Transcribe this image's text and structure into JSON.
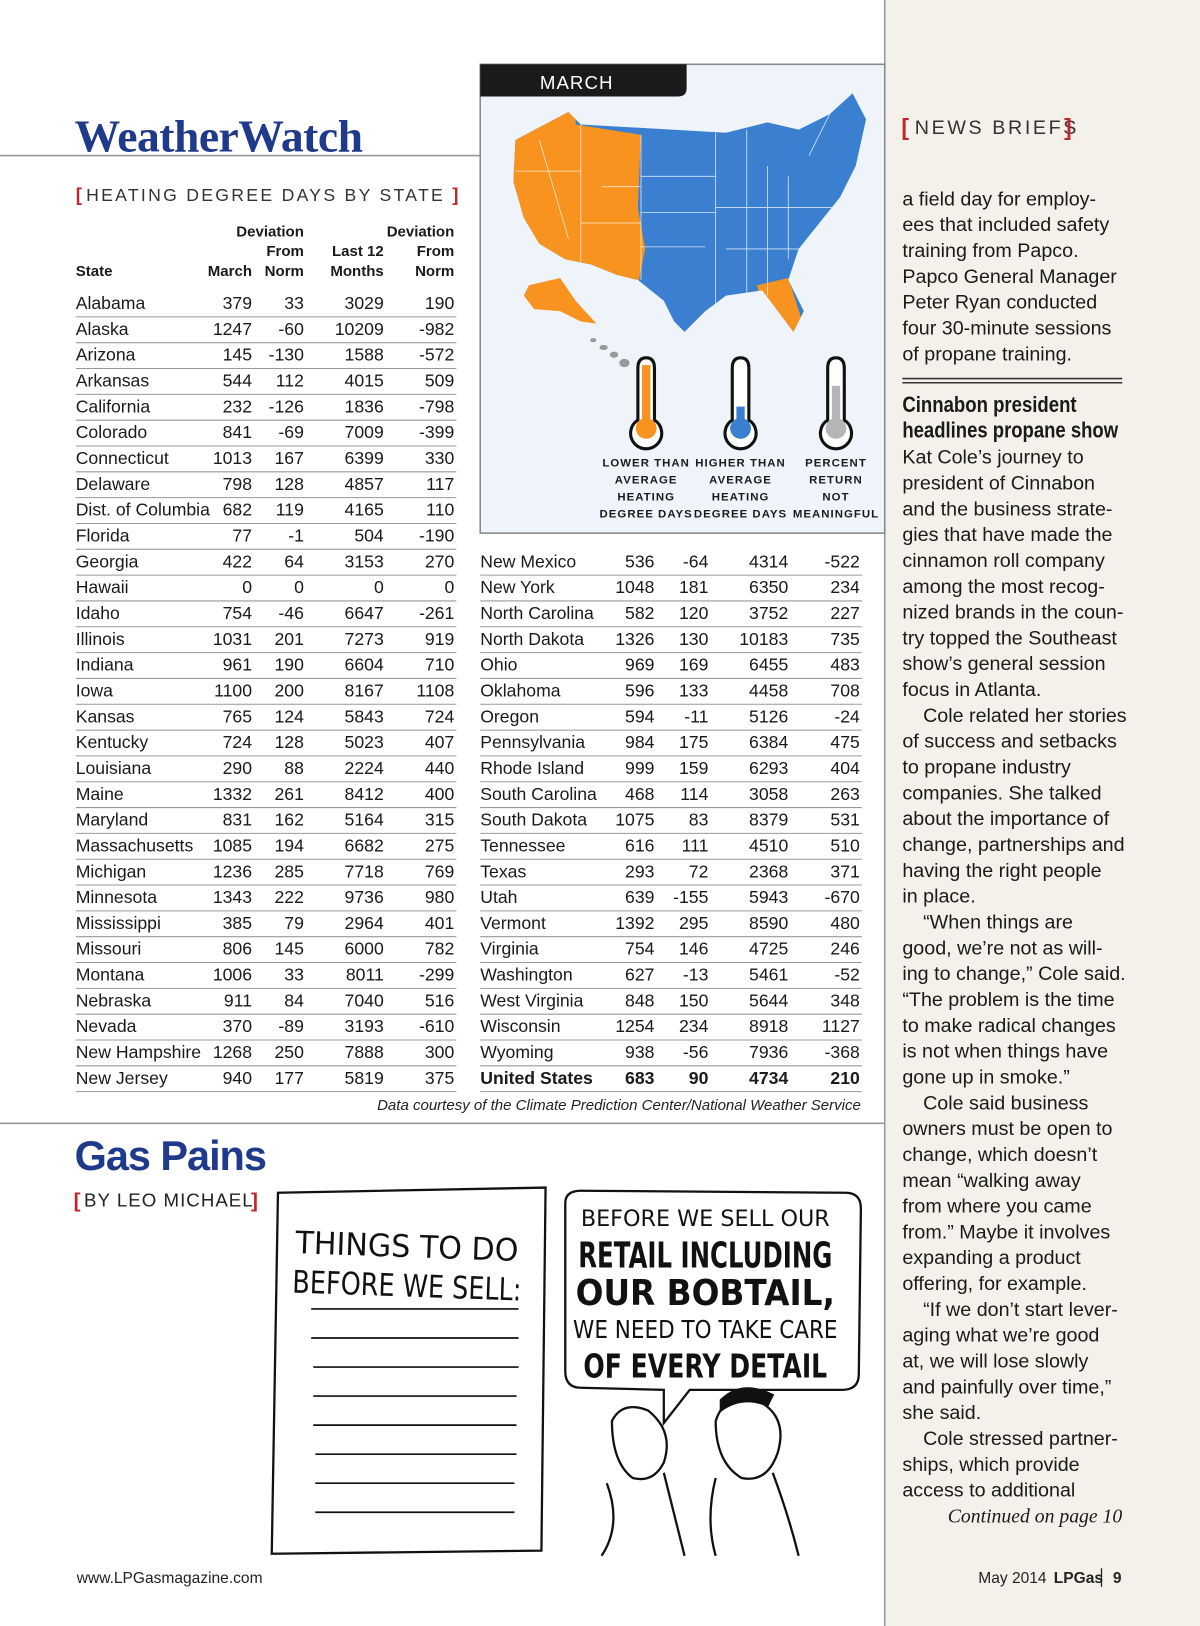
{
  "header": {
    "title": "WeatherWatch",
    "subtitle": "HEATING DEGREE DAYS BY STATE"
  },
  "table": {
    "columns": [
      [
        "State"
      ],
      [
        "March"
      ],
      [
        "Deviation",
        "From",
        "Norm"
      ],
      [
        "Last 12",
        "Months"
      ],
      [
        "Deviation",
        "From",
        "Norm"
      ]
    ],
    "rows": [
      [
        "Alabama",
        379,
        33,
        3029,
        190
      ],
      [
        "Alaska",
        1247,
        -60,
        10209,
        -982
      ],
      [
        "Arizona",
        145,
        -130,
        1588,
        -572
      ],
      [
        "Arkansas",
        544,
        112,
        4015,
        509
      ],
      [
        "California",
        232,
        -126,
        1836,
        -798
      ],
      [
        "Colorado",
        841,
        -69,
        7009,
        -399
      ],
      [
        "Connecticut",
        1013,
        167,
        6399,
        330
      ],
      [
        "Delaware",
        798,
        128,
        4857,
        117
      ],
      [
        "Dist. of Columbia",
        682,
        119,
        4165,
        110
      ],
      [
        "Florida",
        77,
        -1,
        504,
        -190
      ],
      [
        "Georgia",
        422,
        64,
        3153,
        270
      ],
      [
        "Hawaii",
        0,
        0,
        0,
        0
      ],
      [
        "Idaho",
        754,
        -46,
        6647,
        -261
      ],
      [
        "Illinois",
        1031,
        201,
        7273,
        919
      ],
      [
        "Indiana",
        961,
        190,
        6604,
        710
      ],
      [
        "Iowa",
        1100,
        200,
        8167,
        1108
      ],
      [
        "Kansas",
        765,
        124,
        5843,
        724
      ],
      [
        "Kentucky",
        724,
        128,
        5023,
        407
      ],
      [
        "Louisiana",
        290,
        88,
        2224,
        440
      ],
      [
        "Maine",
        1332,
        261,
        8412,
        400
      ],
      [
        "Maryland",
        831,
        162,
        5164,
        315
      ],
      [
        "Massachusetts",
        1085,
        194,
        6682,
        275
      ],
      [
        "Michigan",
        1236,
        285,
        7718,
        769
      ],
      [
        "Minnesota",
        1343,
        222,
        9736,
        980
      ],
      [
        "Mississippi",
        385,
        79,
        2964,
        401
      ],
      [
        "Missouri",
        806,
        145,
        6000,
        782
      ],
      [
        "Montana",
        1006,
        33,
        8011,
        -299
      ],
      [
        "Nebraska",
        911,
        84,
        7040,
        516
      ],
      [
        "Nevada",
        370,
        -89,
        3193,
        -610
      ],
      [
        "New Hampshire",
        1268,
        250,
        7888,
        300
      ],
      [
        "New Jersey",
        940,
        177,
        5819,
        375
      ],
      [
        "New Mexico",
        536,
        -64,
        4314,
        -522
      ],
      [
        "New York",
        1048,
        181,
        6350,
        234
      ],
      [
        "North Carolina",
        582,
        120,
        3752,
        227
      ],
      [
        "North Dakota",
        1326,
        130,
        10183,
        735
      ],
      [
        "Ohio",
        969,
        169,
        6455,
        483
      ],
      [
        "Oklahoma",
        596,
        133,
        4458,
        708
      ],
      [
        "Oregon",
        594,
        -11,
        5126,
        -24
      ],
      [
        "Pennsylvania",
        984,
        175,
        6384,
        475
      ],
      [
        "Rhode Island",
        999,
        159,
        6293,
        404
      ],
      [
        "South Carolina",
        468,
        114,
        3058,
        263
      ],
      [
        "South Dakota",
        1075,
        83,
        8379,
        531
      ],
      [
        "Tennessee",
        616,
        111,
        4510,
        510
      ],
      [
        "Texas",
        293,
        72,
        2368,
        371
      ],
      [
        "Utah",
        639,
        -155,
        5943,
        -670
      ],
      [
        "Vermont",
        1392,
        295,
        8590,
        480
      ],
      [
        "Virginia",
        754,
        146,
        4725,
        246
      ],
      [
        "Washington",
        627,
        -13,
        5461,
        -52
      ],
      [
        "West Virginia",
        848,
        150,
        5644,
        348
      ],
      [
        "Wisconsin",
        1254,
        234,
        8918,
        1127
      ],
      [
        "Wyoming",
        938,
        -56,
        7936,
        -368
      ],
      [
        "United States",
        683,
        90,
        4734,
        210
      ]
    ],
    "source": "Data courtesy of the Climate Prediction Center/National Weather Service"
  },
  "map": {
    "label": "MARCH",
    "legend": [
      [
        "LOWER THAN",
        "AVERAGE",
        "HEATING",
        "DEGREE DAYS"
      ],
      [
        "HIGHER THAN",
        "AVERAGE",
        "HEATING",
        "DEGREE DAYS"
      ],
      [
        "PERCENT",
        "RETURN",
        "NOT",
        "MEANINGFUL"
      ]
    ]
  },
  "cartoon": {
    "title": "Gas Pains",
    "byline": "BY LEO MICHAEL",
    "sign": [
      "THINGS TO DO",
      "BEFORE WE SELL:"
    ],
    "bubble": [
      "BEFORE WE SELL OUR",
      "RETAIL INCLUDING",
      "OUR BOBTAIL,",
      "WE NEED TO TAKE CARE",
      "OF EVERY DETAIL"
    ]
  },
  "news": {
    "heading": "NEWS BRIEFS",
    "lead": [
      "a field day for employ-",
      "ees that included safety",
      "training from Papco.",
      "Papco General Manager",
      "Peter Ryan conducted",
      "four 30-minute sessions",
      "of propane training."
    ],
    "story_title": [
      "Cinnabon president",
      "headlines propane show"
    ],
    "paragraphs": [
      [
        "Kat Cole’s journey to",
        "president of Cinnabon",
        "and the business strate-",
        "gies that have made the",
        "cinnamon roll company",
        "among the most recog-",
        "nized brands in the coun-",
        "try topped the Southeast",
        "show’s general session",
        "focus in Atlanta."
      ],
      [
        "Cole related her stories",
        "of success and setbacks",
        "to propane industry",
        "companies. She talked",
        "about the importance of",
        "change, partnerships and",
        "having the right people",
        "in place."
      ],
      [
        "“When things are",
        "good, we’re not as will-",
        "ing to change,” Cole said.",
        "“The problem is the time",
        "to make radical changes",
        "is not when things have",
        "gone up in smoke.”"
      ],
      [
        "Cole said business",
        "owners must be open to",
        "change, which doesn’t",
        "mean “walking away",
        "from where you came",
        "from.” Maybe it involves",
        "expanding a product",
        "offering, for example."
      ],
      [
        "“If we don’t start lever-",
        "aging what we’re good",
        "at, we will lose slowly",
        "and painfully over time,”",
        "she said."
      ],
      [
        "Cole stressed partner-",
        "ships, which provide",
        "access to additional"
      ]
    ],
    "continued": "Continued on page 10"
  },
  "footer": {
    "url": "www.LPGasmagazine.com",
    "date": "May 2014",
    "brand": "LPGas",
    "page": "9"
  }
}
